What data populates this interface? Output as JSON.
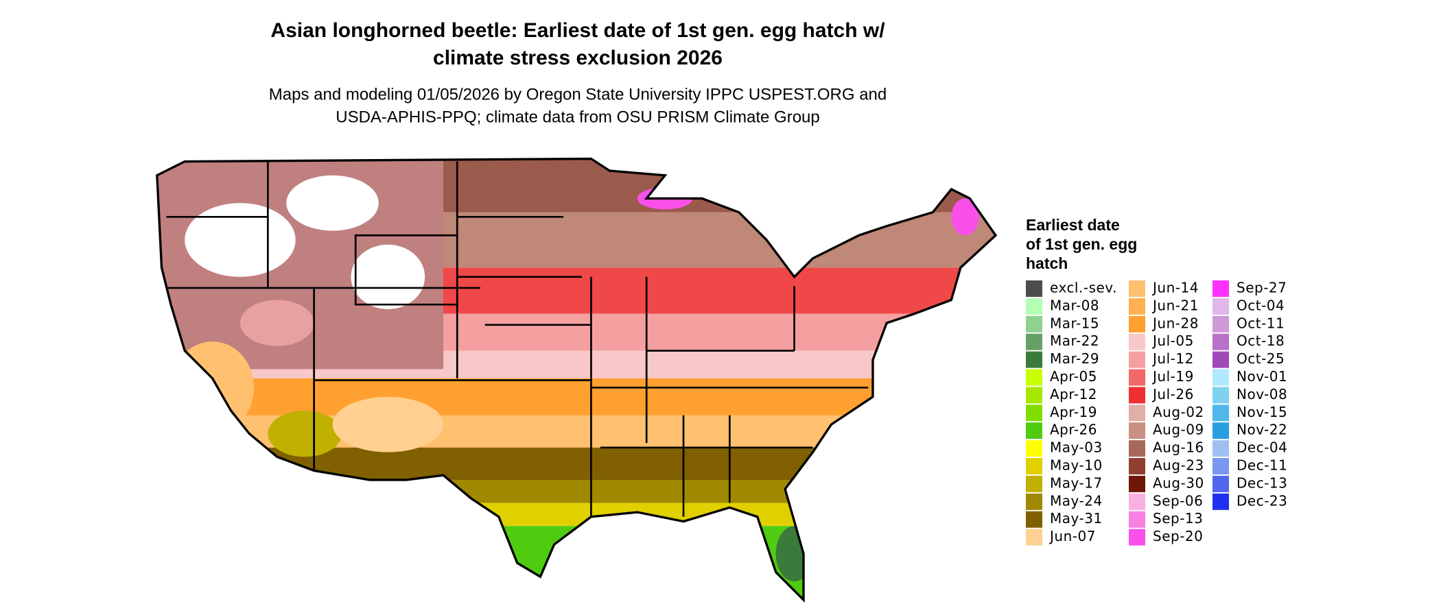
{
  "header": {
    "title": [
      "Asian longhorned beetle: Earliest date of 1st gen. egg hatch w/",
      "climate stress exclusion 2026"
    ],
    "subtitle": [
      "Maps and modeling 01/05/2026 by Oregon State University IPPC USPEST.ORG and",
      "USDA-APHIS-PPQ; climate data from OSU PRISM Climate Group"
    ]
  },
  "legend": {
    "title": [
      "Earliest date",
      "of 1st gen. egg",
      "hatch"
    ],
    "items": [
      {
        "label": "excl.-sev.",
        "color": "#4d4d4d"
      },
      {
        "label": "Mar-08",
        "color": "#b3ffb3"
      },
      {
        "label": "Mar-15",
        "color": "#8fd18f"
      },
      {
        "label": "Mar-22",
        "color": "#66a066"
      },
      {
        "label": "Mar-29",
        "color": "#3a7a3a"
      },
      {
        "label": "Apr-05",
        "color": "#c8ff00"
      },
      {
        "label": "Apr-12",
        "color": "#a8e800"
      },
      {
        "label": "Apr-19",
        "color": "#80dd00"
      },
      {
        "label": "Apr-26",
        "color": "#50cc10"
      },
      {
        "label": "May-03",
        "color": "#ffff00"
      },
      {
        "label": "May-10",
        "color": "#e0d000"
      },
      {
        "label": "May-17",
        "color": "#c0b000"
      },
      {
        "label": "May-24",
        "color": "#a08800"
      },
      {
        "label": "May-31",
        "color": "#806000"
      },
      {
        "label": "Jun-07",
        "color": "#ffd090"
      },
      {
        "label": "Jun-14",
        "color": "#ffc070"
      },
      {
        "label": "Jun-21",
        "color": "#ffb050"
      },
      {
        "label": "Jun-28",
        "color": "#ffa030"
      },
      {
        "label": "Jul-05",
        "color": "#f8c8c8"
      },
      {
        "label": "Jul-12",
        "color": "#f5a0a0"
      },
      {
        "label": "Jul-19",
        "color": "#f06868"
      },
      {
        "label": "Jul-26",
        "color": "#f03030"
      },
      {
        "label": "Aug-02",
        "color": "#e0b0a8"
      },
      {
        "label": "Aug-09",
        "color": "#c89080"
      },
      {
        "label": "Aug-16",
        "color": "#a86858"
      },
      {
        "label": "Aug-23",
        "color": "#904030"
      },
      {
        "label": "Aug-30",
        "color": "#701808"
      },
      {
        "label": "Sep-06",
        "color": "#f8b0e0"
      },
      {
        "label": "Sep-13",
        "color": "#f880e0"
      },
      {
        "label": "Sep-20",
        "color": "#f850e8"
      },
      {
        "label": "Sep-27",
        "color": "#ff30ff"
      },
      {
        "label": "Oct-04",
        "color": "#e0b8e8"
      },
      {
        "label": "Oct-11",
        "color": "#d098d8"
      },
      {
        "label": "Oct-18",
        "color": "#b870c8"
      },
      {
        "label": "Oct-25",
        "color": "#a048b8"
      },
      {
        "label": "Nov-01",
        "color": "#b0e8ff"
      },
      {
        "label": "Nov-08",
        "color": "#80d0f0"
      },
      {
        "label": "Nov-15",
        "color": "#50b8e8"
      },
      {
        "label": "Nov-22",
        "color": "#28a0e0"
      },
      {
        "label": "Dec-04",
        "color": "#a0c0f0"
      },
      {
        "label": "Dec-11",
        "color": "#7898f0"
      },
      {
        "label": "Dec-13",
        "color": "#5068f0"
      },
      {
        "label": "Dec-23",
        "color": "#2030f0"
      }
    ]
  }
}
